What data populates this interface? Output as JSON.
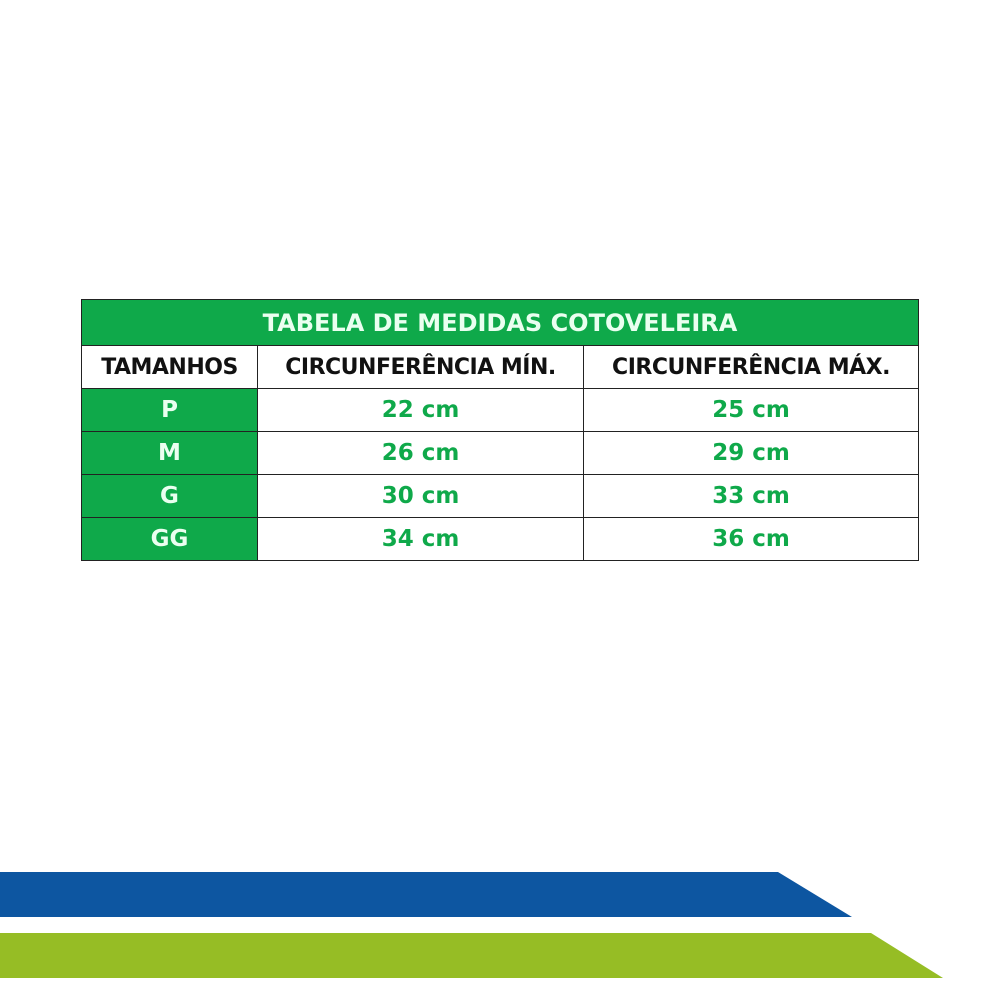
{
  "title": "TABELA DE MEDIDAS COTOVELEIRA",
  "headers": [
    "TAMANHOS",
    "CIRCUNFERÊNCIA MÍN.",
    "CIRCUNFERÊNCIA MÁX."
  ],
  "rows": [
    {
      "size": "P",
      "min": "22 cm",
      "max": "25 cm"
    },
    {
      "size": "M",
      "min": "26 cm",
      "max": "29 cm"
    },
    {
      "size": "G",
      "min": "30 cm",
      "max": "33 cm"
    },
    {
      "size": "GG",
      "min": "34 cm",
      "max": "36 cm"
    }
  ],
  "colors": {
    "table_green": "#0fa94a",
    "band_blue": "#0d56a1",
    "band_green": "#96bd25"
  }
}
